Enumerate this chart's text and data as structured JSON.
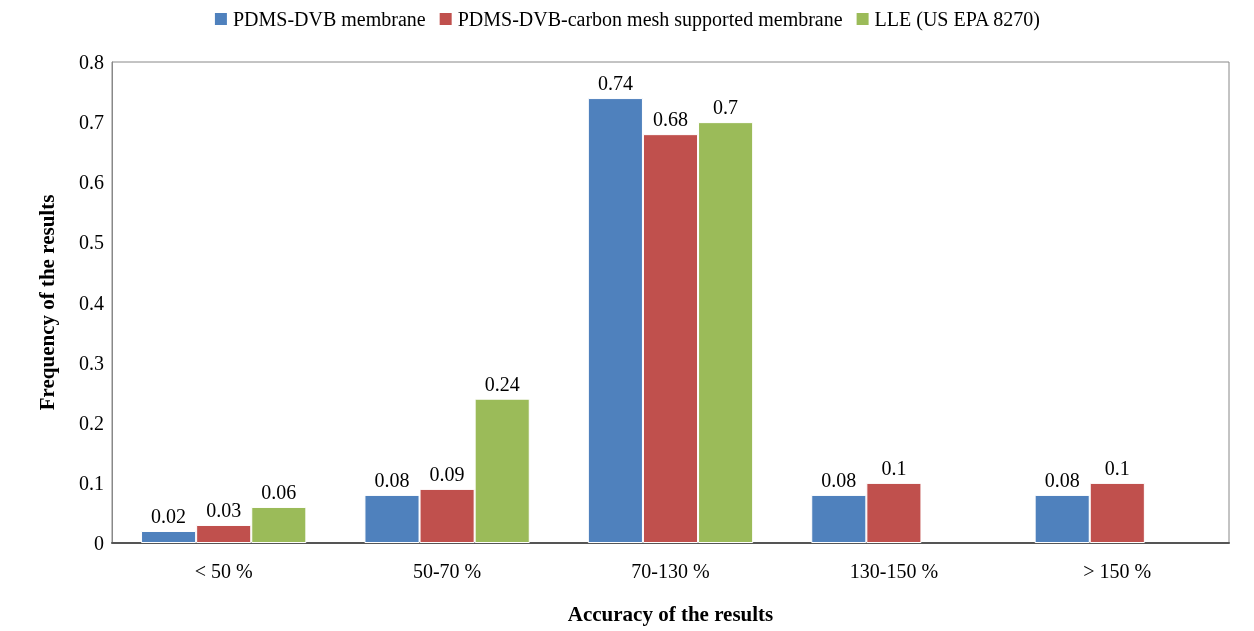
{
  "chart_data": {
    "type": "bar",
    "xlabel": "Accuracy of the results",
    "ylabel": "Frequency of the results",
    "categories": [
      "< 50 %",
      "50-70 %",
      "70-130 %",
      "130-150 %",
      "> 150 %"
    ],
    "series": [
      {
        "name": "PDMS-DVB membrane",
        "color": "#4f81bd",
        "values": [
          0.02,
          0.08,
          0.74,
          0.08,
          0.08
        ],
        "value_labels": [
          "0.02",
          "0.08",
          "0.74",
          "0.08",
          "0.08"
        ]
      },
      {
        "name": "PDMS-DVB-carbon mesh supported membrane",
        "color": "#c0504d",
        "values": [
          0.03,
          0.09,
          0.68,
          0.1,
          0.1
        ],
        "value_labels": [
          "0.03",
          "0.09",
          "0.68",
          "0.1",
          "0.1"
        ]
      },
      {
        "name": "LLE (US EPA 8270)",
        "color": "#9bbb59",
        "values": [
          0.06,
          0.24,
          0.7,
          0,
          0
        ],
        "value_labels": [
          "0.06",
          "0.24",
          "0.7",
          null,
          null
        ]
      }
    ],
    "ylim": [
      0,
      0.8
    ],
    "yticks": [
      0,
      0.1,
      0.2,
      0.3,
      0.4,
      0.5,
      0.6,
      0.7,
      0.8
    ],
    "grid": false,
    "legend": "top"
  }
}
